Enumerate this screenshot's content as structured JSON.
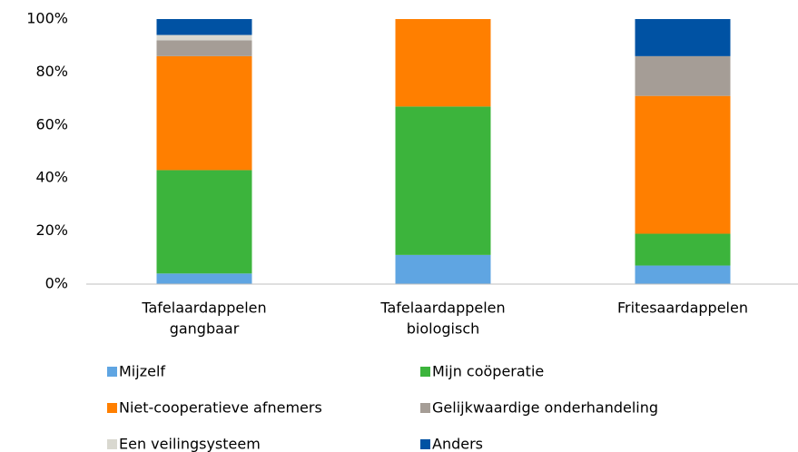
{
  "chart_data": {
    "type": "stacked_bar",
    "categories": [
      [
        "Tafelaardappelen",
        "gangbaar"
      ],
      [
        "Tafelaardappelen",
        "biologisch"
      ],
      [
        "Fritesaardappelen"
      ]
    ],
    "series": [
      {
        "name": "Mijzelf",
        "color": "#5fa5e2",
        "values": [
          4,
          11,
          7
        ]
      },
      {
        "name": "Mijn coöperatie",
        "color": "#3cb43c",
        "values": [
          39,
          56,
          12
        ]
      },
      {
        "name": "Niet-cooperatieve afnemers",
        "color": "#ff7f00",
        "values": [
          43,
          33,
          52
        ]
      },
      {
        "name": "Gelijkwaardige onderhandeling",
        "color": "#a59d96",
        "values": [
          6,
          0,
          15
        ]
      },
      {
        "name": "Een veilingsysteem",
        "color": "#d9d8d0",
        "values": [
          2,
          0,
          0
        ]
      },
      {
        "name": "Anders",
        "color": "#0052a3",
        "values": [
          6,
          0,
          14
        ]
      }
    ],
    "ylim": [
      0,
      100
    ],
    "yticks": [
      {
        "value": 0,
        "label": "0%"
      },
      {
        "value": 20,
        "label": "20%"
      },
      {
        "value": 40,
        "label": "40%"
      },
      {
        "value": 60,
        "label": "60%"
      },
      {
        "value": 80,
        "label": "80%"
      },
      {
        "value": 100,
        "label": "100%"
      }
    ]
  }
}
